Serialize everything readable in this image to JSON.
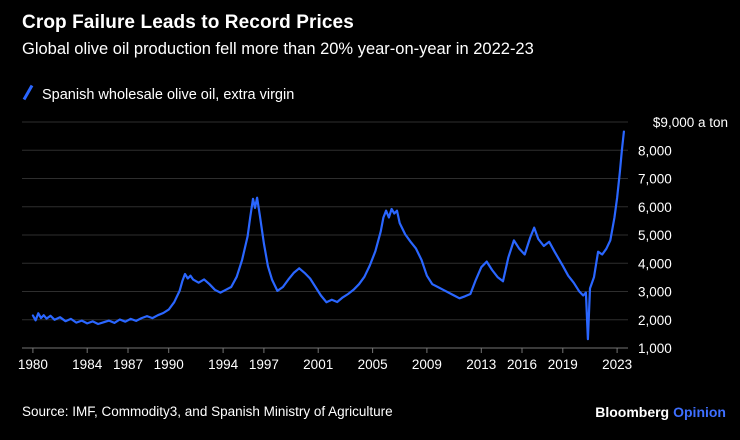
{
  "header": {
    "title": "Crop Failure Leads to Record Prices",
    "subtitle": "Global olive oil production fell more than 20% year-on-year in 2022-23"
  },
  "legend": {
    "label": "Spanish wholesale olive oil, extra virgin"
  },
  "footer": {
    "source": "Source: IMF, Commodity3, and Spanish Ministry of Agriculture",
    "brand": "Bloomberg",
    "brand_suffix": "Opinion"
  },
  "colors": {
    "background": "#000000",
    "accent": "#2a66ff",
    "brand_suffix_color": "#3e6fff",
    "grid": "#2e2e2e",
    "axis": "#757575",
    "text": "#ffffff"
  },
  "chart_data": {
    "type": "line",
    "title": "Crop Failure Leads to Record Prices",
    "subtitle": "Global olive oil production fell more than 20% year-on-year in 2022-23",
    "ylabel": "$ a ton",
    "grid": true,
    "legend_position": "top-left",
    "y_axis": {
      "min": 1000,
      "max": 9000,
      "step": 1000,
      "top_label": "$9,000 a ton",
      "tick_labels": [
        "8,000",
        "7,000",
        "6,000",
        "5,000",
        "4,000",
        "3,000",
        "2,000",
        "1,000"
      ]
    },
    "x_axis": {
      "domain": [
        1979.2,
        2023.8
      ],
      "tick_years": [
        1980,
        1984,
        1987,
        1990,
        1994,
        1997,
        2001,
        2005,
        2009,
        2013,
        2016,
        2019,
        2023
      ]
    },
    "series": [
      {
        "name": "Spanish wholesale olive oil, extra virgin",
        "color": "#2a66ff",
        "points": [
          [
            1980.0,
            2150
          ],
          [
            1980.2,
            1980
          ],
          [
            1980.4,
            2230
          ],
          [
            1980.6,
            2060
          ],
          [
            1980.8,
            2160
          ],
          [
            1981.0,
            2040
          ],
          [
            1981.3,
            2140
          ],
          [
            1981.6,
            2000
          ],
          [
            1982.0,
            2090
          ],
          [
            1982.4,
            1950
          ],
          [
            1982.8,
            2030
          ],
          [
            1983.2,
            1900
          ],
          [
            1983.6,
            1970
          ],
          [
            1984.0,
            1870
          ],
          [
            1984.4,
            1940
          ],
          [
            1984.8,
            1850
          ],
          [
            1985.2,
            1910
          ],
          [
            1985.6,
            1970
          ],
          [
            1986.0,
            1890
          ],
          [
            1986.4,
            2010
          ],
          [
            1986.8,
            1930
          ],
          [
            1987.2,
            2030
          ],
          [
            1987.6,
            1960
          ],
          [
            1988.0,
            2060
          ],
          [
            1988.4,
            2130
          ],
          [
            1988.8,
            2060
          ],
          [
            1989.2,
            2160
          ],
          [
            1989.6,
            2240
          ],
          [
            1990.0,
            2360
          ],
          [
            1990.4,
            2620
          ],
          [
            1990.8,
            3020
          ],
          [
            1991.0,
            3360
          ],
          [
            1991.2,
            3620
          ],
          [
            1991.4,
            3460
          ],
          [
            1991.6,
            3560
          ],
          [
            1991.8,
            3420
          ],
          [
            1992.2,
            3310
          ],
          [
            1992.6,
            3430
          ],
          [
            1993.0,
            3260
          ],
          [
            1993.4,
            3060
          ],
          [
            1993.8,
            2960
          ],
          [
            1994.2,
            3060
          ],
          [
            1994.6,
            3160
          ],
          [
            1995.0,
            3520
          ],
          [
            1995.4,
            4120
          ],
          [
            1995.8,
            4950
          ],
          [
            1996.0,
            5650
          ],
          [
            1996.2,
            6280
          ],
          [
            1996.35,
            5960
          ],
          [
            1996.5,
            6320
          ],
          [
            1996.7,
            5700
          ],
          [
            1997.0,
            4700
          ],
          [
            1997.3,
            3900
          ],
          [
            1997.6,
            3420
          ],
          [
            1998.0,
            3020
          ],
          [
            1998.4,
            3160
          ],
          [
            1998.8,
            3420
          ],
          [
            1999.2,
            3660
          ],
          [
            1999.6,
            3820
          ],
          [
            2000.0,
            3660
          ],
          [
            2000.4,
            3460
          ],
          [
            2000.8,
            3160
          ],
          [
            2001.2,
            2860
          ],
          [
            2001.6,
            2620
          ],
          [
            2002.0,
            2710
          ],
          [
            2002.4,
            2630
          ],
          [
            2002.8,
            2790
          ],
          [
            2003.2,
            2910
          ],
          [
            2003.6,
            3060
          ],
          [
            2004.0,
            3260
          ],
          [
            2004.4,
            3520
          ],
          [
            2004.8,
            3920
          ],
          [
            2005.2,
            4420
          ],
          [
            2005.6,
            5120
          ],
          [
            2005.8,
            5620
          ],
          [
            2006.0,
            5860
          ],
          [
            2006.2,
            5620
          ],
          [
            2006.4,
            5920
          ],
          [
            2006.6,
            5760
          ],
          [
            2006.8,
            5860
          ],
          [
            2007.0,
            5420
          ],
          [
            2007.4,
            5020
          ],
          [
            2007.8,
            4760
          ],
          [
            2008.2,
            4520
          ],
          [
            2008.6,
            4120
          ],
          [
            2009.0,
            3560
          ],
          [
            2009.4,
            3260
          ],
          [
            2009.8,
            3160
          ],
          [
            2010.2,
            3060
          ],
          [
            2010.6,
            2960
          ],
          [
            2011.0,
            2860
          ],
          [
            2011.4,
            2760
          ],
          [
            2011.8,
            2830
          ],
          [
            2012.2,
            2910
          ],
          [
            2012.6,
            3410
          ],
          [
            2013.0,
            3860
          ],
          [
            2013.4,
            4060
          ],
          [
            2013.8,
            3760
          ],
          [
            2014.2,
            3510
          ],
          [
            2014.6,
            3360
          ],
          [
            2015.0,
            4210
          ],
          [
            2015.4,
            4810
          ],
          [
            2015.8,
            4510
          ],
          [
            2016.2,
            4310
          ],
          [
            2016.6,
            4910
          ],
          [
            2016.9,
            5260
          ],
          [
            2017.2,
            4860
          ],
          [
            2017.6,
            4610
          ],
          [
            2018.0,
            4760
          ],
          [
            2018.4,
            4410
          ],
          [
            2019.0,
            3910
          ],
          [
            2019.4,
            3560
          ],
          [
            2019.8,
            3310
          ],
          [
            2020.2,
            3010
          ],
          [
            2020.5,
            2860
          ],
          [
            2020.7,
            2960
          ],
          [
            2020.85,
            1310
          ],
          [
            2021.0,
            3110
          ],
          [
            2021.3,
            3510
          ],
          [
            2021.6,
            4410
          ],
          [
            2021.9,
            4310
          ],
          [
            2022.2,
            4510
          ],
          [
            2022.5,
            4810
          ],
          [
            2022.8,
            5610
          ],
          [
            2023.0,
            6310
          ],
          [
            2023.2,
            7210
          ],
          [
            2023.35,
            8010
          ],
          [
            2023.5,
            8660
          ]
        ]
      }
    ]
  }
}
